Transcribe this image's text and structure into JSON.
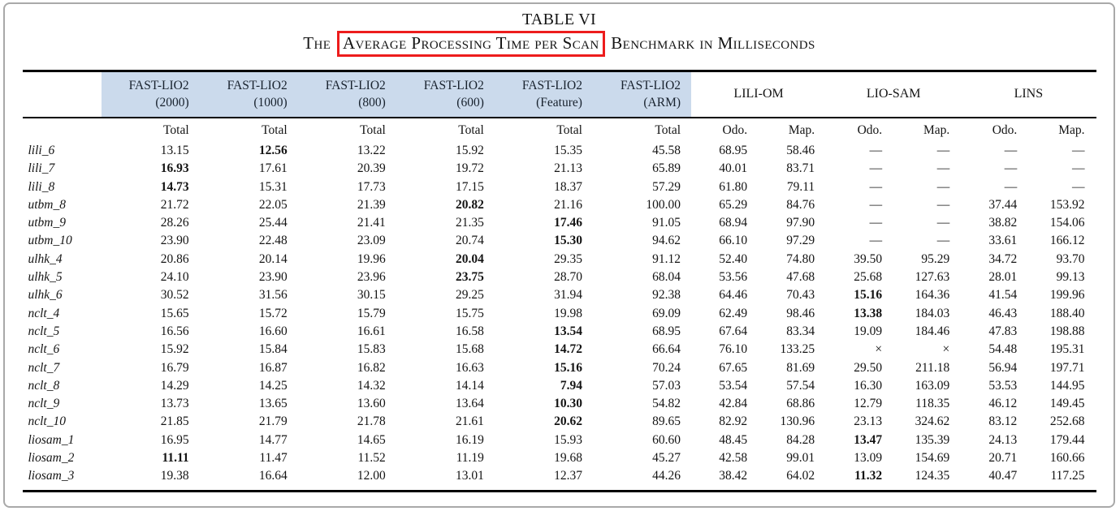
{
  "title": "TABLE VI",
  "subtitle": {
    "prefix": "The",
    "boxed": "Average Processing Time per Scan",
    "suffix": "Benchmark in Milliseconds"
  },
  "colors": {
    "header_highlight": "#cbdaec",
    "annotation_red": "#ed1c1c",
    "rule_black": "#000000",
    "frame_gray": "#a9a9a9"
  },
  "table": {
    "fast_groups": [
      {
        "name": "FAST-LIO2",
        "param": "(2000)"
      },
      {
        "name": "FAST-LIO2",
        "param": "(1000)"
      },
      {
        "name": "FAST-LIO2",
        "param": "(800)"
      },
      {
        "name": "FAST-LIO2",
        "param": "(600)"
      },
      {
        "name": "FAST-LIO2",
        "param": "(Feature)"
      },
      {
        "name": "FAST-LIO2",
        "param": "(ARM)"
      }
    ],
    "pair_groups": [
      "LILI-OM",
      "LIO-SAM",
      "LINS"
    ],
    "sub_headers": [
      "Total",
      "Total",
      "Total",
      "Total",
      "Total",
      "Total",
      "Odo.",
      "Map.",
      "Odo.",
      "Map.",
      "Odo.",
      "Map."
    ],
    "rows": [
      {
        "label": "lili_6",
        "values": [
          "13.15",
          "12.56",
          "13.22",
          "15.92",
          "15.35",
          "45.58",
          "68.95",
          "58.46",
          "—",
          "—",
          "—",
          "—"
        ],
        "bold": [
          1
        ]
      },
      {
        "label": "lili_7",
        "values": [
          "16.93",
          "17.61",
          "20.39",
          "19.72",
          "21.13",
          "65.89",
          "40.01",
          "83.71",
          "—",
          "—",
          "—",
          "—"
        ],
        "bold": [
          0
        ]
      },
      {
        "label": "lili_8",
        "values": [
          "14.73",
          "15.31",
          "17.73",
          "17.15",
          "18.37",
          "57.29",
          "61.80",
          "79.11",
          "—",
          "—",
          "—",
          "—"
        ],
        "bold": [
          0
        ]
      },
      {
        "label": "utbm_8",
        "values": [
          "21.72",
          "22.05",
          "21.39",
          "20.82",
          "21.16",
          "100.00",
          "65.29",
          "84.76",
          "—",
          "—",
          "37.44",
          "153.92"
        ],
        "bold": [
          3
        ]
      },
      {
        "label": "utbm_9",
        "values": [
          "28.26",
          "25.44",
          "21.41",
          "21.35",
          "17.46",
          "91.05",
          "68.94",
          "97.90",
          "—",
          "—",
          "38.82",
          "154.06"
        ],
        "bold": [
          4
        ]
      },
      {
        "label": "utbm_10",
        "values": [
          "23.90",
          "22.48",
          "23.09",
          "20.74",
          "15.30",
          "94.62",
          "66.10",
          "97.29",
          "—",
          "—",
          "33.61",
          "166.12"
        ],
        "bold": [
          4
        ]
      },
      {
        "label": "ulhk_4",
        "values": [
          "20.86",
          "20.14",
          "19.96",
          "20.04",
          "29.35",
          "91.12",
          "52.40",
          "74.80",
          "39.50",
          "95.29",
          "34.72",
          "93.70"
        ],
        "bold": [
          3
        ]
      },
      {
        "label": "ulhk_5",
        "values": [
          "24.10",
          "23.90",
          "23.96",
          "23.75",
          "28.70",
          "68.04",
          "53.56",
          "47.68",
          "25.68",
          "127.63",
          "28.01",
          "99.13"
        ],
        "bold": [
          3
        ]
      },
      {
        "label": "ulhk_6",
        "values": [
          "30.52",
          "31.56",
          "30.15",
          "29.25",
          "31.94",
          "92.38",
          "64.46",
          "70.43",
          "15.16",
          "164.36",
          "41.54",
          "199.96"
        ],
        "bold": [
          8
        ]
      },
      {
        "label": "nclt_4",
        "values": [
          "15.65",
          "15.72",
          "15.79",
          "15.75",
          "19.98",
          "69.09",
          "62.49",
          "98.46",
          "13.38",
          "184.03",
          "46.43",
          "188.40"
        ],
        "bold": [
          8
        ]
      },
      {
        "label": "nclt_5",
        "values": [
          "16.56",
          "16.60",
          "16.61",
          "16.58",
          "13.54",
          "68.95",
          "67.64",
          "83.34",
          "19.09",
          "184.46",
          "47.83",
          "198.88"
        ],
        "bold": [
          4
        ]
      },
      {
        "label": "nclt_6",
        "values": [
          "15.92",
          "15.84",
          "15.83",
          "15.68",
          "14.72",
          "66.64",
          "76.10",
          "133.25",
          "×",
          "×",
          "54.48",
          "195.31"
        ],
        "bold": [
          4
        ]
      },
      {
        "label": "nclt_7",
        "values": [
          "16.79",
          "16.87",
          "16.82",
          "16.63",
          "15.16",
          "70.24",
          "67.65",
          "81.69",
          "29.50",
          "211.18",
          "56.94",
          "197.71"
        ],
        "bold": [
          4
        ]
      },
      {
        "label": "nclt_8",
        "values": [
          "14.29",
          "14.25",
          "14.32",
          "14.14",
          "7.94",
          "57.03",
          "53.54",
          "57.54",
          "16.30",
          "163.09",
          "53.53",
          "144.95"
        ],
        "bold": [
          4
        ]
      },
      {
        "label": "nclt_9",
        "values": [
          "13.73",
          "13.65",
          "13.60",
          "13.64",
          "10.30",
          "54.82",
          "42.84",
          "68.86",
          "12.79",
          "118.35",
          "46.12",
          "149.45"
        ],
        "bold": [
          4
        ]
      },
      {
        "label": "nclt_10",
        "values": [
          "21.85",
          "21.79",
          "21.78",
          "21.61",
          "20.62",
          "89.65",
          "82.92",
          "130.96",
          "23.13",
          "324.62",
          "83.12",
          "252.68"
        ],
        "bold": [
          4
        ]
      },
      {
        "label": "liosam_1",
        "values": [
          "16.95",
          "14.77",
          "14.65",
          "16.19",
          "15.93",
          "60.60",
          "48.45",
          "84.28",
          "13.47",
          "135.39",
          "24.13",
          "179.44"
        ],
        "bold": [
          8
        ]
      },
      {
        "label": "liosam_2",
        "values": [
          "11.11",
          "11.47",
          "11.52",
          "11.19",
          "19.68",
          "45.27",
          "42.58",
          "99.01",
          "13.09",
          "154.69",
          "20.71",
          "160.66"
        ],
        "bold": [
          0
        ]
      },
      {
        "label": "liosam_3",
        "values": [
          "19.38",
          "16.64",
          "12.00",
          "13.01",
          "12.37",
          "44.26",
          "38.42",
          "64.02",
          "11.32",
          "124.35",
          "40.47",
          "117.25"
        ],
        "bold": [
          8
        ]
      }
    ]
  }
}
